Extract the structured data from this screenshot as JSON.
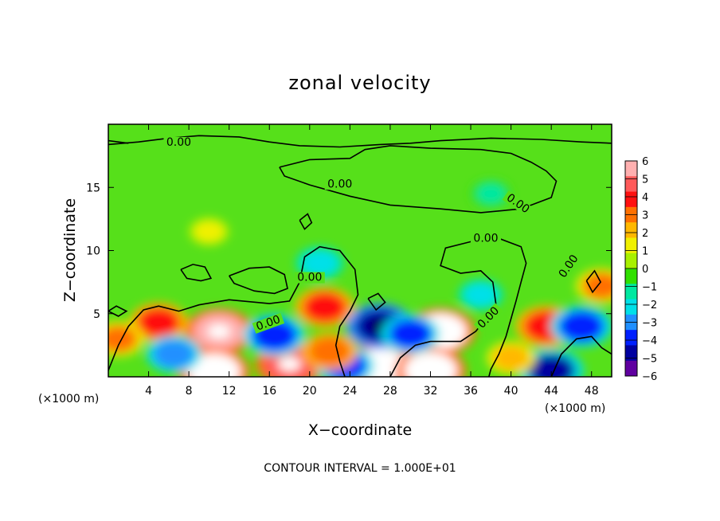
{
  "chart_data": {
    "type": "heatmap",
    "title": "zonal velocity",
    "xlabel": "X−coordinate",
    "ylabel": "Z−coordinate",
    "x_unit_left": "(×1000 m)",
    "x_unit_right": "(×1000 m)",
    "xlim": [
      0,
      50
    ],
    "ylim": [
      0,
      20
    ],
    "x_ticks": [
      4,
      8,
      12,
      16,
      20,
      24,
      28,
      32,
      36,
      40,
      44,
      48
    ],
    "y_ticks": [
      5,
      10,
      15
    ],
    "contour_label": "0.00",
    "contour_interval_note": "CONTOUR INTERVAL = 1.000E+01",
    "colorbar": {
      "min": -6,
      "max": 6,
      "labels": [
        "6",
        "5",
        "4",
        "3",
        "2",
        "1",
        "0",
        "−1",
        "−2",
        "−3",
        "−4",
        "−5",
        "−6"
      ],
      "colors": [
        "#ffb0b0",
        "#ff5a5a",
        "#ff1010",
        "#ff7000",
        "#ffb800",
        "#f0f000",
        "#a8f000",
        "#30e000",
        "#00e8a0",
        "#00e0e8",
        "#2090ff",
        "#0020ff",
        "#0000a0",
        "#6000a0"
      ]
    },
    "features": [
      {
        "x": 11,
        "z": 3.6,
        "value": 5.6
      },
      {
        "x": 21.5,
        "z": 5.5,
        "value": 4.2
      },
      {
        "x": 33,
        "z": 3.6,
        "value": 5.8
      },
      {
        "x": 43.5,
        "z": 4.0,
        "value": 4.5
      },
      {
        "x": 5,
        "z": 4.3,
        "value": 4.0
      },
      {
        "x": 18,
        "z": 1.0,
        "value": 5.5
      },
      {
        "x": 27,
        "z": 0.8,
        "value": 6.0
      },
      {
        "x": 32,
        "z": 0.5,
        "value": 6.0
      },
      {
        "x": 10.5,
        "z": 0.4,
        "value": 6.0
      },
      {
        "x": 16.5,
        "z": 3.3,
        "value": -4.5
      },
      {
        "x": 27,
        "z": 4.0,
        "value": -5.5
      },
      {
        "x": 30,
        "z": 3.4,
        "value": -4.0
      },
      {
        "x": 47,
        "z": 4.0,
        "value": -4.5
      },
      {
        "x": 6.5,
        "z": 1.8,
        "value": -3.5
      },
      {
        "x": 23.5,
        "z": 0.9,
        "value": -4.0
      },
      {
        "x": 44,
        "z": 0.5,
        "value": -5.0
      },
      {
        "x": 21,
        "z": 9.0,
        "value": -2.5
      },
      {
        "x": 37,
        "z": 6.5,
        "value": -2.0
      },
      {
        "x": 10,
        "z": 11.5,
        "value": 1.3
      },
      {
        "x": 38,
        "z": 14.5,
        "value": -1.3
      },
      {
        "x": 22,
        "z": 2.0,
        "value": 3.5
      },
      {
        "x": 40,
        "z": 1.5,
        "value": 2.5
      },
      {
        "x": 1.0,
        "z": 3.0,
        "value": 3.0
      },
      {
        "x": 49,
        "z": 7.2,
        "value": 3.0
      }
    ]
  }
}
